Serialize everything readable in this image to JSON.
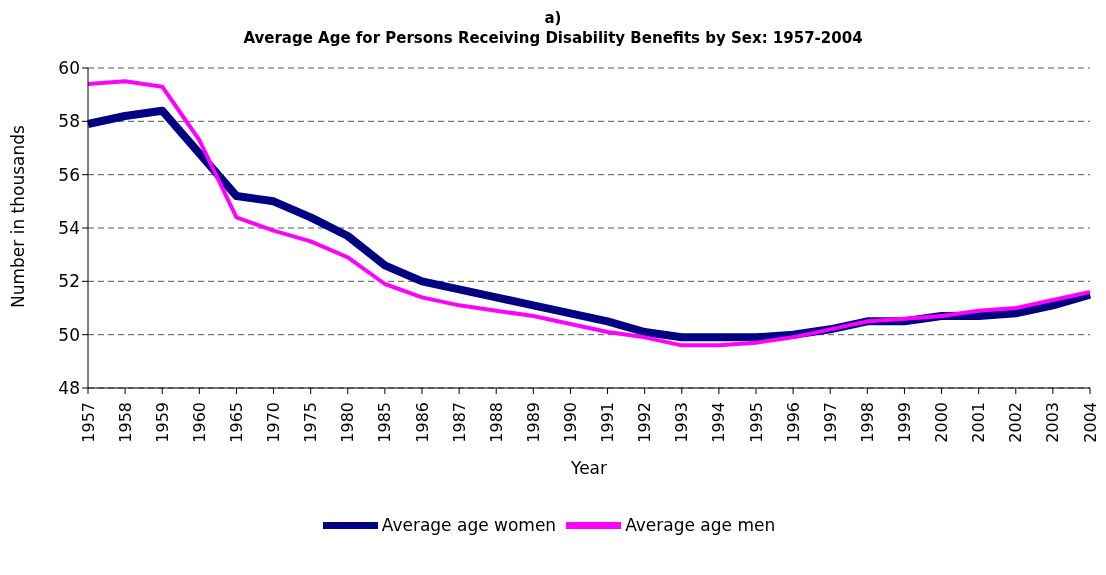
{
  "chart_data": {
    "type": "line",
    "title": "a)",
    "subtitle": "Average Age for Persons Receiving Disability Benefits by Sex: 1957-2004",
    "xlabel": "Year",
    "ylabel": "Number in thousands",
    "categories": [
      "1957",
      "1958",
      "1959",
      "1960",
      "1965",
      "1970",
      "1975",
      "1980",
      "1985",
      "1986",
      "1987",
      "1988",
      "1989",
      "1990",
      "1991",
      "1992",
      "1993",
      "1994",
      "1995",
      "1996",
      "1997",
      "1998",
      "1999",
      "2000",
      "2001",
      "2002",
      "2003",
      "2004"
    ],
    "series": [
      {
        "name": "Average age women",
        "color": "#000080",
        "values": [
          57.9,
          58.2,
          58.4,
          56.8,
          55.2,
          55.0,
          54.4,
          53.7,
          52.6,
          52.0,
          51.7,
          51.4,
          51.1,
          50.8,
          50.5,
          50.1,
          49.9,
          49.9,
          49.9,
          50.0,
          50.2,
          50.5,
          50.5,
          50.7,
          50.7,
          50.8,
          51.1,
          51.5
        ]
      },
      {
        "name": "Average age men",
        "color": "#ff00ff",
        "values": [
          59.4,
          59.5,
          59.3,
          57.3,
          54.4,
          53.9,
          53.5,
          52.9,
          51.9,
          51.4,
          51.1,
          50.9,
          50.7,
          50.4,
          50.1,
          49.9,
          49.6,
          49.6,
          49.7,
          49.9,
          50.2,
          50.5,
          50.6,
          50.7,
          50.9,
          51.0,
          51.3,
          51.6
        ]
      }
    ],
    "ylim": [
      48,
      60
    ],
    "yticks": [
      48,
      50,
      52,
      54,
      56,
      58,
      60
    ],
    "grid": "y",
    "legend": "bottom",
    "marker": "none",
    "line_style": "solid"
  }
}
